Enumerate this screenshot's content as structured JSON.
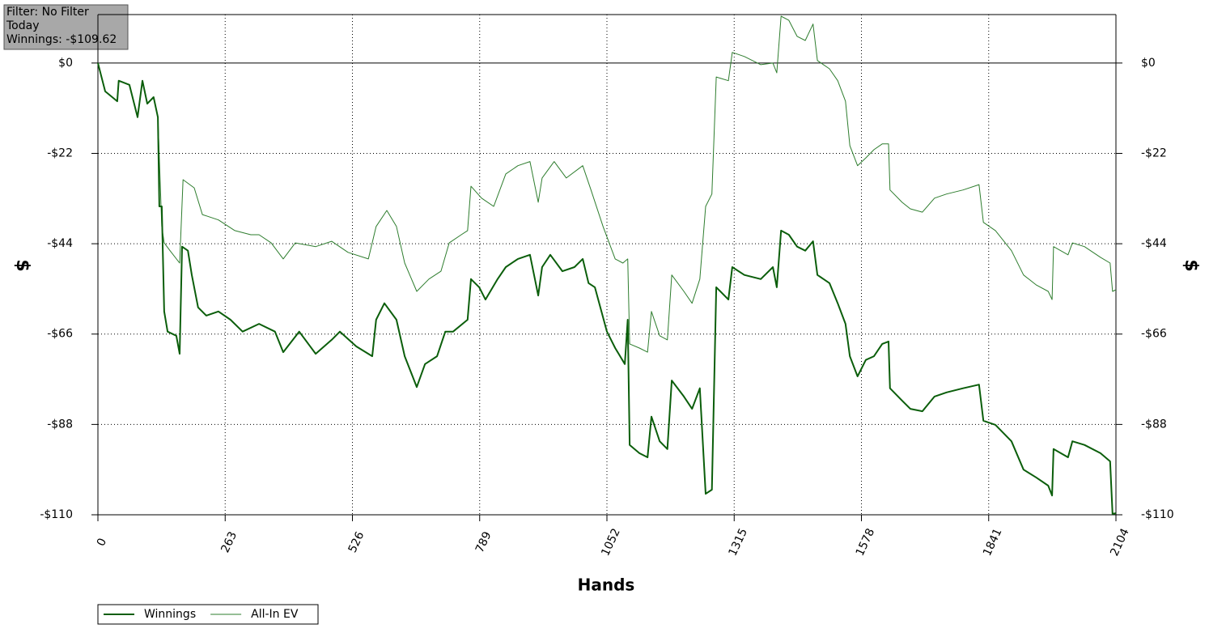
{
  "chart_data": {
    "type": "line",
    "annotations": [
      "Filter: No Filter",
      "Today",
      "Winnings: -$109.62"
    ],
    "x_label": "Hands",
    "y_label": "$",
    "xlim": [
      0,
      2104
    ],
    "xticks": [
      0,
      263,
      526,
      789,
      1052,
      1315,
      1578,
      1841,
      2104
    ],
    "ylim": [
      -110,
      11.8
    ],
    "yticks": [
      {
        "value": 0,
        "label": "$0"
      },
      {
        "value": -22,
        "label": "-$22"
      },
      {
        "value": -44,
        "label": "-$44"
      },
      {
        "value": -66,
        "label": "-$66"
      },
      {
        "value": -88,
        "label": "-$88"
      },
      {
        "value": -110,
        "label": "-$110"
      }
    ],
    "grid": true,
    "legend": "bottom-left",
    "series": [
      {
        "name": "Winnings",
        "color": "#0b5e0b",
        "x": [
          0,
          15,
          40,
          43,
          65,
          82,
          92,
          102,
          115,
          124,
          127,
          132,
          137,
          144,
          162,
          169,
          174,
          186,
          194,
          207,
          224,
          249,
          274,
          299,
          333,
          366,
          383,
          416,
          450,
          483,
          500,
          534,
          567,
          575,
          592,
          617,
          634,
          659,
          676,
          701,
          718,
          734,
          764,
          771,
          788,
          801,
          826,
          843,
          868,
          893,
          910,
          918,
          935,
          960,
          985,
          1002,
          1014,
          1027,
          1052,
          1069,
          1089,
          1095,
          1099,
          1119,
          1136,
          1144,
          1161,
          1177,
          1186,
          1211,
          1228,
          1244,
          1256,
          1269,
          1278,
          1303,
          1311,
          1336,
          1370,
          1395,
          1403,
          1412,
          1428,
          1445,
          1462,
          1478,
          1487,
          1512,
          1529,
          1545,
          1554,
          1570,
          1587,
          1604,
          1621,
          1634,
          1637,
          1662,
          1679,
          1704,
          1729,
          1754,
          1788,
          1821,
          1830,
          1855,
          1888,
          1913,
          1939,
          1964,
          1972,
          1975,
          2005,
          2014,
          2039,
          2072,
          2092,
          2097,
          2104
        ],
        "values": [
          0,
          -6.9,
          -9.3,
          -4.3,
          -5.3,
          -13.2,
          -4.3,
          -9.9,
          -8.3,
          -13.2,
          -34.9,
          -34.9,
          -60.5,
          -65.4,
          -66.4,
          -70.8,
          -44.7,
          -45.7,
          -51.6,
          -59.5,
          -61.5,
          -60.5,
          -62.5,
          -65.4,
          -63.5,
          -65.4,
          -70.4,
          -65.4,
          -70.8,
          -67.4,
          -65.4,
          -69.0,
          -71.4,
          -62.5,
          -58.5,
          -62.5,
          -71.4,
          -78.9,
          -73.3,
          -71.4,
          -65.4,
          -65.4,
          -62.5,
          -52.6,
          -54.6,
          -57.6,
          -52.6,
          -49.7,
          -47.7,
          -46.7,
          -56.6,
          -49.7,
          -46.7,
          -50.7,
          -49.7,
          -47.7,
          -53.6,
          -54.6,
          -65.4,
          -69.4,
          -73.3,
          -62.5,
          -93.0,
          -95.0,
          -96.0,
          -86.1,
          -92.1,
          -94.0,
          -77.3,
          -81.2,
          -84.2,
          -79.2,
          -104.9,
          -103.9,
          -54.6,
          -57.6,
          -49.7,
          -51.6,
          -52.6,
          -49.7,
          -54.6,
          -40.8,
          -41.8,
          -44.7,
          -45.7,
          -43.4,
          -51.6,
          -53.6,
          -58.5,
          -63.5,
          -71.4,
          -76.3,
          -72.3,
          -71.4,
          -68.4,
          -67.8,
          -79.2,
          -82.2,
          -84.2,
          -84.8,
          -81.2,
          -80.2,
          -79.2,
          -78.3,
          -87.1,
          -88.1,
          -92.1,
          -99.0,
          -100.9,
          -102.9,
          -105.3,
          -94.0,
          -96.0,
          -92.1,
          -93.0,
          -95.0,
          -97.0,
          -109.8,
          -109.6
        ]
      },
      {
        "name": "All-In EV",
        "color": "#2e7d2e",
        "x": [
          0,
          15,
          40,
          43,
          65,
          82,
          92,
          102,
          115,
          124,
          132,
          137,
          149,
          169,
          176,
          199,
          216,
          249,
          283,
          316,
          333,
          358,
          383,
          408,
          450,
          483,
          517,
          559,
          575,
          597,
          617,
          634,
          659,
          684,
          709,
          726,
          751,
          764,
          771,
          793,
          818,
          843,
          868,
          893,
          910,
          918,
          943,
          968,
          1002,
          1019,
          1044,
          1069,
          1085,
          1095,
          1099,
          1119,
          1136,
          1144,
          1161,
          1177,
          1186,
          1211,
          1228,
          1244,
          1256,
          1269,
          1278,
          1303,
          1311,
          1336,
          1370,
          1395,
          1403,
          1412,
          1428,
          1445,
          1462,
          1478,
          1487,
          1512,
          1529,
          1545,
          1554,
          1570,
          1587,
          1604,
          1621,
          1634,
          1637,
          1662,
          1679,
          1704,
          1729,
          1754,
          1788,
          1821,
          1830,
          1855,
          1888,
          1913,
          1939,
          1964,
          1972,
          1975,
          2005,
          2014,
          2039,
          2072,
          2092,
          2097,
          2104
        ],
        "values": [
          0,
          -6.9,
          -9.3,
          -4.3,
          -5.3,
          -13.2,
          -4.3,
          -9.9,
          -8.3,
          -13.2,
          -39.8,
          -43.8,
          -45.7,
          -48.7,
          -28.4,
          -30.4,
          -36.9,
          -38.2,
          -40.8,
          -41.8,
          -41.8,
          -43.8,
          -47.7,
          -43.8,
          -44.7,
          -43.4,
          -46.1,
          -47.7,
          -39.8,
          -35.9,
          -39.8,
          -48.7,
          -55.6,
          -52.6,
          -50.7,
          -43.8,
          -41.8,
          -40.8,
          -30.0,
          -32.9,
          -34.9,
          -27.0,
          -25.0,
          -24.0,
          -33.9,
          -28.0,
          -24.0,
          -28.0,
          -25.0,
          -30.9,
          -39.8,
          -47.7,
          -48.7,
          -47.7,
          -68.4,
          -69.4,
          -70.4,
          -60.5,
          -66.4,
          -67.4,
          -51.6,
          -55.6,
          -58.5,
          -52.6,
          -34.9,
          -31.9,
          -3.4,
          -4.3,
          2.6,
          1.6,
          -0.4,
          0,
          -2.4,
          11.4,
          10.4,
          6.5,
          5.5,
          9.5,
          0.6,
          -1.4,
          -4.3,
          -9.3,
          -20.1,
          -25.0,
          -23.1,
          -21.1,
          -19.7,
          -19.7,
          -30.9,
          -33.9,
          -35.5,
          -36.3,
          -32.9,
          -31.9,
          -30.9,
          -29.6,
          -38.8,
          -40.8,
          -45.7,
          -51.6,
          -54.0,
          -55.6,
          -57.6,
          -44.7,
          -46.7,
          -43.8,
          -44.7,
          -47.3,
          -48.7,
          -55.6,
          -55.2
        ]
      }
    ]
  }
}
